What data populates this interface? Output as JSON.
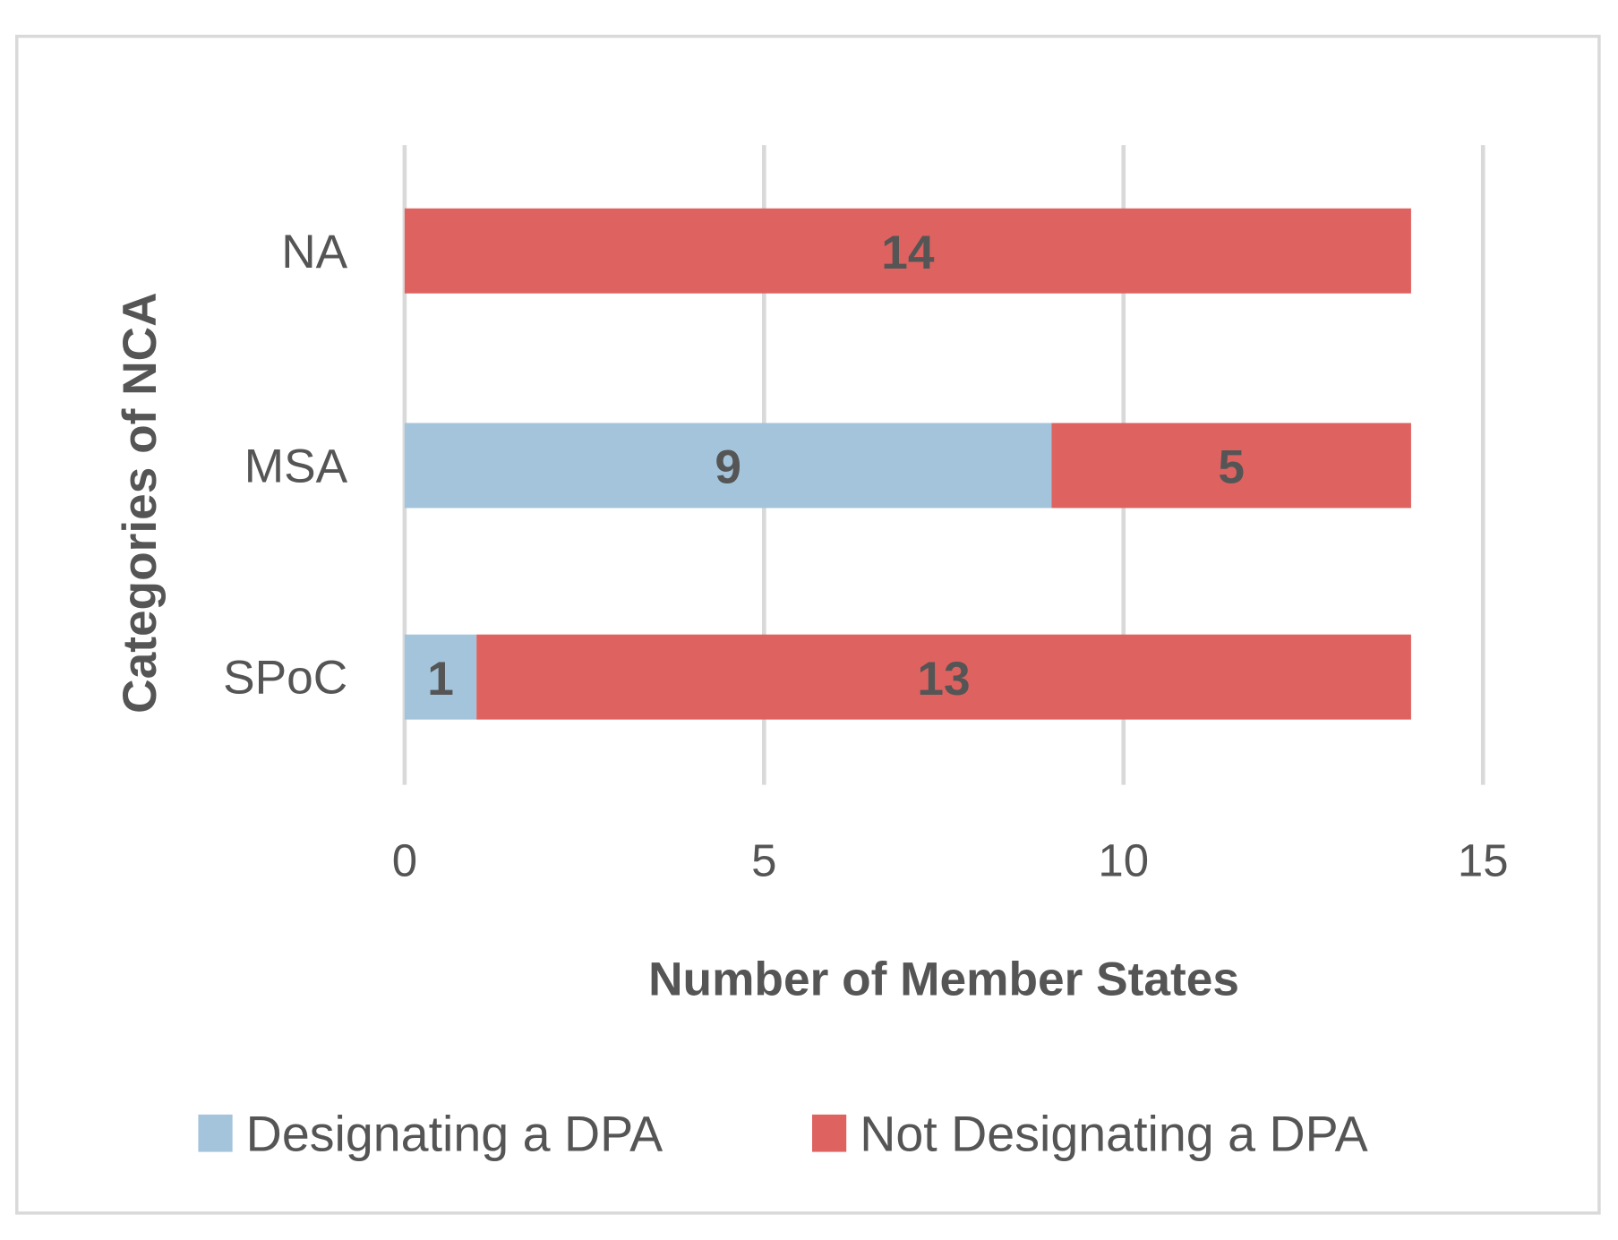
{
  "chart_data": {
    "type": "bar",
    "orientation": "horizontal",
    "stacked": true,
    "title": "",
    "xlabel": "Number of Member States",
    "ylabel": "Categories of NCA",
    "categories": [
      "NA",
      "MSA",
      "SPoC"
    ],
    "series": [
      {
        "name": "Designating a DPA",
        "color": "#a3c4da",
        "values": [
          0,
          9,
          1
        ]
      },
      {
        "name": "Not Designating a DPA",
        "color": "#de6360",
        "values": [
          14,
          5,
          13
        ]
      }
    ],
    "xlim": [
      0,
      15
    ],
    "xticks": [
      "0",
      "5",
      "10",
      "15"
    ],
    "grid": "vertical",
    "legend": "bottom",
    "text_color": "#555555"
  }
}
